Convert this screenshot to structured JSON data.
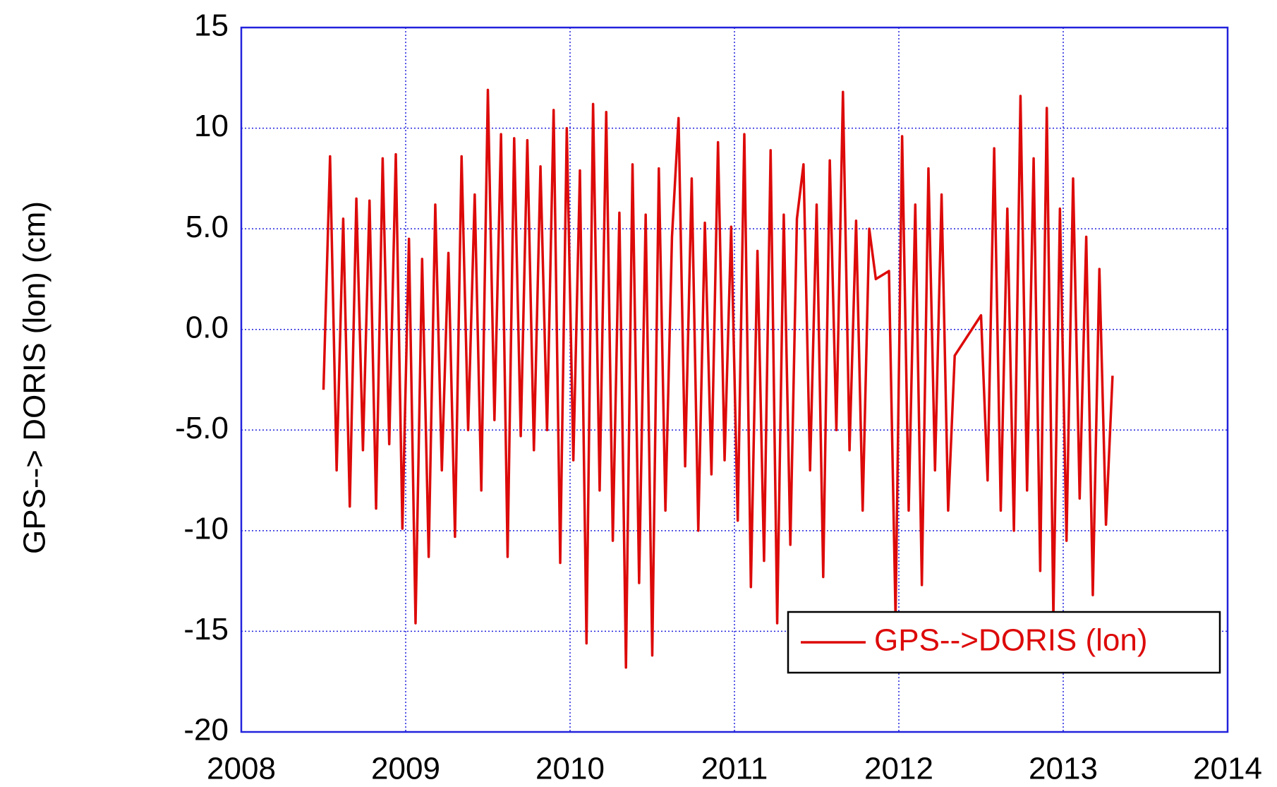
{
  "chart_data": {
    "type": "line",
    "y_label": "GPS--> DORIS (lon) (cm)",
    "x": [
      2008.5,
      2008.54,
      2008.58,
      2008.62,
      2008.66,
      2008.7,
      2008.74,
      2008.78,
      2008.82,
      2008.86,
      2008.9,
      2008.94,
      2008.98,
      2009.02,
      2009.06,
      2009.1,
      2009.14,
      2009.18,
      2009.22,
      2009.26,
      2009.3,
      2009.34,
      2009.38,
      2009.42,
      2009.46,
      2009.5,
      2009.54,
      2009.58,
      2009.62,
      2009.66,
      2009.7,
      2009.74,
      2009.78,
      2009.82,
      2009.86,
      2009.9,
      2009.94,
      2009.98,
      2010.02,
      2010.06,
      2010.1,
      2010.14,
      2010.18,
      2010.22,
      2010.26,
      2010.3,
      2010.34,
      2010.38,
      2010.42,
      2010.46,
      2010.5,
      2010.54,
      2010.58,
      2010.62,
      2010.66,
      2010.7,
      2010.74,
      2010.78,
      2010.82,
      2010.86,
      2010.9,
      2010.94,
      2010.98,
      2011.02,
      2011.06,
      2011.1,
      2011.14,
      2011.18,
      2011.22,
      2011.26,
      2011.3,
      2011.34,
      2011.38,
      2011.42,
      2011.46,
      2011.5,
      2011.54,
      2011.58,
      2011.62,
      2011.66,
      2011.7,
      2011.74,
      2011.78,
      2011.82,
      2011.86,
      2011.94,
      2011.98,
      2012.02,
      2012.06,
      2012.1,
      2012.14,
      2012.18,
      2012.22,
      2012.26,
      2012.3,
      2012.34,
      2012.5,
      2012.54,
      2012.58,
      2012.62,
      2012.66,
      2012.7,
      2012.74,
      2012.78,
      2012.82,
      2012.86,
      2012.9,
      2012.94,
      2012.98,
      2013.02,
      2013.06,
      2013.1,
      2013.14,
      2013.18,
      2013.22,
      2013.26,
      2013.3
    ],
    "series": [
      {
        "name": "GPS-->DORIS (lon)",
        "color": "#dd0a0a",
        "values": [
          -3,
          8.6,
          -7,
          5.5,
          -8.8,
          6.5,
          -6,
          6.4,
          -8.9,
          8.5,
          -5.7,
          8.7,
          -9.9,
          4.5,
          -14.6,
          3.5,
          -11.3,
          6.2,
          -7,
          3.8,
          -10.3,
          8.6,
          -5,
          6.7,
          -8,
          11.9,
          -4.5,
          9.7,
          -11.3,
          9.5,
          -5.3,
          9.4,
          -6,
          8.1,
          -5,
          10.9,
          -11.6,
          10,
          -6.5,
          7.9,
          -15.6,
          11.2,
          -8,
          10.8,
          -10.5,
          5.8,
          -16.8,
          8.2,
          -12.6,
          5.7,
          -16.2,
          8,
          -9,
          4.6,
          10.5,
          -6.8,
          7.5,
          -10,
          5.3,
          -7.2,
          9.3,
          -6.5,
          5.1,
          -9.5,
          9.7,
          -12.8,
          3.9,
          -11.5,
          8.9,
          -14.6,
          5.7,
          -10.7,
          5.5,
          8.2,
          -7,
          6.2,
          -12.3,
          8.4,
          -5,
          11.8,
          -6,
          5.4,
          -9,
          5,
          2.5,
          2.9,
          -14.3,
          9.6,
          -9,
          6.2,
          -12.7,
          8,
          -7,
          6.7,
          -9,
          -1.3,
          0.7,
          -7.5,
          9,
          -9,
          6,
          -10,
          11.6,
          -8,
          8.5,
          -12,
          11,
          -14.3,
          6,
          -10.5,
          7.5,
          -8.4,
          4.6,
          -13.2,
          3,
          -9.7,
          -2.3
        ]
      }
    ],
    "xlim": [
      2008,
      2014
    ],
    "xticks": [
      2008,
      2009,
      2010,
      2011,
      2012,
      2013,
      2014
    ],
    "ylim": [
      -20,
      15
    ],
    "yticks": [
      -20,
      -15,
      -10,
      {
        "value": -5,
        "label": "-5.0"
      },
      {
        "value": 0,
        "label": "0.0"
      },
      {
        "value": 5,
        "label": "5.0"
      },
      10,
      15
    ],
    "grid": true,
    "legend": "lower right"
  }
}
